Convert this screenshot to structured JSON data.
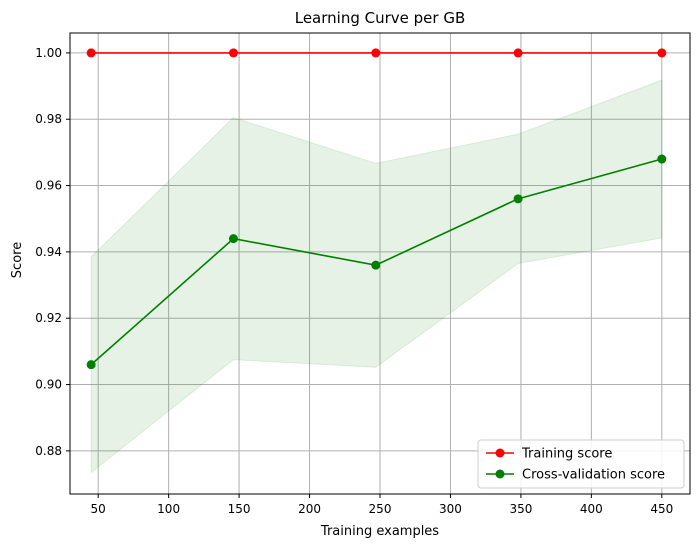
{
  "chart_data": {
    "type": "line",
    "title": "Learning Curve per GB",
    "xlabel": "Training examples",
    "ylabel": "Score",
    "xlim": [
      30,
      470
    ],
    "ylim": [
      0.867,
      1.006
    ],
    "xticks": [
      50,
      100,
      150,
      200,
      250,
      300,
      350,
      400,
      450
    ],
    "xtick_labels": [
      "50",
      "100",
      "150",
      "200",
      "250",
      "300",
      "350",
      "400",
      "450"
    ],
    "yticks": [
      0.88,
      0.9,
      0.92,
      0.94,
      0.96,
      0.98,
      1.0
    ],
    "ytick_labels": [
      "0.88",
      "0.90",
      "0.92",
      "0.94",
      "0.96",
      "0.98",
      "1.00"
    ],
    "grid": true,
    "legend_position": "lower-right",
    "x": [
      45,
      146,
      247,
      348,
      450
    ],
    "series": [
      {
        "name": "Training score",
        "color": "#ff0000",
        "marker": "circle",
        "values": [
          1.0,
          1.0,
          1.0,
          1.0,
          1.0
        ],
        "band_lower": [
          1.0,
          1.0,
          1.0,
          1.0,
          1.0
        ],
        "band_upper": [
          1.0,
          1.0,
          1.0,
          1.0,
          1.0
        ]
      },
      {
        "name": "Cross-validation score",
        "color": "#008000",
        "band_color": "#008000",
        "marker": "circle",
        "values": [
          0.906,
          0.944,
          0.936,
          0.956,
          0.968
        ],
        "band_lower": [
          0.8735,
          0.9075,
          0.9052,
          0.9365,
          0.9442
        ],
        "band_upper": [
          0.9385,
          0.9805,
          0.9667,
          0.9755,
          0.9918
        ]
      }
    ]
  }
}
